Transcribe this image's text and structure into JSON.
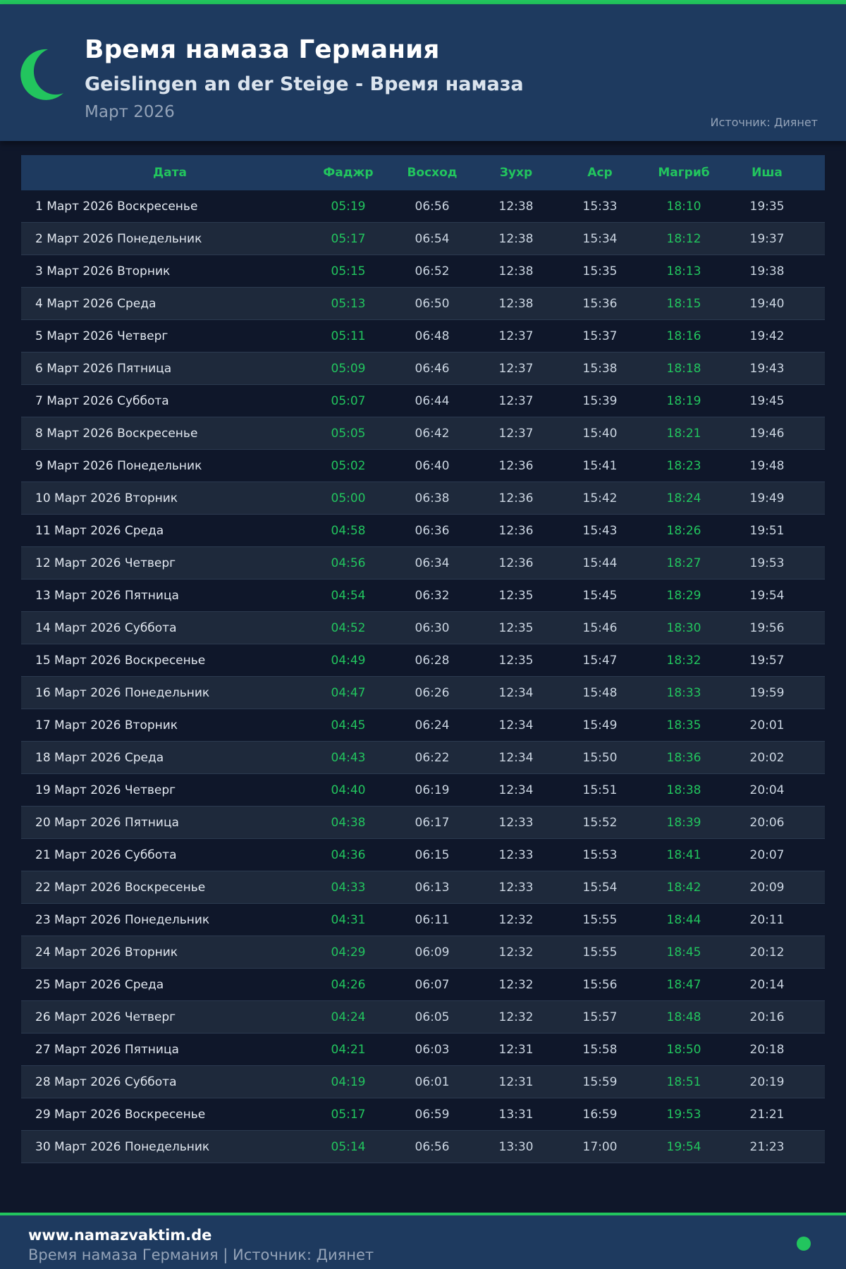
{
  "header": {
    "title": "Время намаза Германия",
    "subtitle": "Geislingen an der Steige - Время намаза",
    "month": "Март 2026",
    "source": "Источник: Диянет"
  },
  "colors": {
    "accent": "#22c55e",
    "header_bg": "#1e3a5f",
    "page_bg": "#0f172a"
  },
  "icons": {
    "logo": "crescent-moon-icon"
  },
  "table": {
    "columns": [
      "Дата",
      "Фаджр",
      "Восход",
      "Зухр",
      "Аср",
      "Магриб",
      "Иша"
    ],
    "rows": [
      [
        "1 Март 2026 Воскресенье",
        "05:19",
        "06:56",
        "12:38",
        "15:33",
        "18:10",
        "19:35"
      ],
      [
        "2 Март 2026 Понедельник",
        "05:17",
        "06:54",
        "12:38",
        "15:34",
        "18:12",
        "19:37"
      ],
      [
        "3 Март 2026 Вторник",
        "05:15",
        "06:52",
        "12:38",
        "15:35",
        "18:13",
        "19:38"
      ],
      [
        "4 Март 2026 Среда",
        "05:13",
        "06:50",
        "12:38",
        "15:36",
        "18:15",
        "19:40"
      ],
      [
        "5 Март 2026 Четверг",
        "05:11",
        "06:48",
        "12:37",
        "15:37",
        "18:16",
        "19:42"
      ],
      [
        "6 Март 2026 Пятница",
        "05:09",
        "06:46",
        "12:37",
        "15:38",
        "18:18",
        "19:43"
      ],
      [
        "7 Март 2026 Суббота",
        "05:07",
        "06:44",
        "12:37",
        "15:39",
        "18:19",
        "19:45"
      ],
      [
        "8 Март 2026 Воскресенье",
        "05:05",
        "06:42",
        "12:37",
        "15:40",
        "18:21",
        "19:46"
      ],
      [
        "9 Март 2026 Понедельник",
        "05:02",
        "06:40",
        "12:36",
        "15:41",
        "18:23",
        "19:48"
      ],
      [
        "10 Март 2026 Вторник",
        "05:00",
        "06:38",
        "12:36",
        "15:42",
        "18:24",
        "19:49"
      ],
      [
        "11 Март 2026 Среда",
        "04:58",
        "06:36",
        "12:36",
        "15:43",
        "18:26",
        "19:51"
      ],
      [
        "12 Март 2026 Четверг",
        "04:56",
        "06:34",
        "12:36",
        "15:44",
        "18:27",
        "19:53"
      ],
      [
        "13 Март 2026 Пятница",
        "04:54",
        "06:32",
        "12:35",
        "15:45",
        "18:29",
        "19:54"
      ],
      [
        "14 Март 2026 Суббота",
        "04:52",
        "06:30",
        "12:35",
        "15:46",
        "18:30",
        "19:56"
      ],
      [
        "15 Март 2026 Воскресенье",
        "04:49",
        "06:28",
        "12:35",
        "15:47",
        "18:32",
        "19:57"
      ],
      [
        "16 Март 2026 Понедельник",
        "04:47",
        "06:26",
        "12:34",
        "15:48",
        "18:33",
        "19:59"
      ],
      [
        "17 Март 2026 Вторник",
        "04:45",
        "06:24",
        "12:34",
        "15:49",
        "18:35",
        "20:01"
      ],
      [
        "18 Март 2026 Среда",
        "04:43",
        "06:22",
        "12:34",
        "15:50",
        "18:36",
        "20:02"
      ],
      [
        "19 Март 2026 Четверг",
        "04:40",
        "06:19",
        "12:34",
        "15:51",
        "18:38",
        "20:04"
      ],
      [
        "20 Март 2026 Пятница",
        "04:38",
        "06:17",
        "12:33",
        "15:52",
        "18:39",
        "20:06"
      ],
      [
        "21 Март 2026 Суббота",
        "04:36",
        "06:15",
        "12:33",
        "15:53",
        "18:41",
        "20:07"
      ],
      [
        "22 Март 2026 Воскресенье",
        "04:33",
        "06:13",
        "12:33",
        "15:54",
        "18:42",
        "20:09"
      ],
      [
        "23 Март 2026 Понедельник",
        "04:31",
        "06:11",
        "12:32",
        "15:55",
        "18:44",
        "20:11"
      ],
      [
        "24 Март 2026 Вторник",
        "04:29",
        "06:09",
        "12:32",
        "15:55",
        "18:45",
        "20:12"
      ],
      [
        "25 Март 2026 Среда",
        "04:26",
        "06:07",
        "12:32",
        "15:56",
        "18:47",
        "20:14"
      ],
      [
        "26 Март 2026 Четверг",
        "04:24",
        "06:05",
        "12:32",
        "15:57",
        "18:48",
        "20:16"
      ],
      [
        "27 Март 2026 Пятница",
        "04:21",
        "06:03",
        "12:31",
        "15:58",
        "18:50",
        "20:18"
      ],
      [
        "28 Март 2026 Суббота",
        "04:19",
        "06:01",
        "12:31",
        "15:59",
        "18:51",
        "20:19"
      ],
      [
        "29 Март 2026 Воскресенье",
        "05:17",
        "06:59",
        "13:31",
        "16:59",
        "19:53",
        "21:21"
      ],
      [
        "30 Март 2026 Понедельник",
        "05:14",
        "06:56",
        "13:30",
        "17:00",
        "19:54",
        "21:23"
      ]
    ]
  },
  "footer": {
    "site": "www.namazvaktim.de",
    "text": "Время намаза Германия | Источник: Диянет"
  }
}
